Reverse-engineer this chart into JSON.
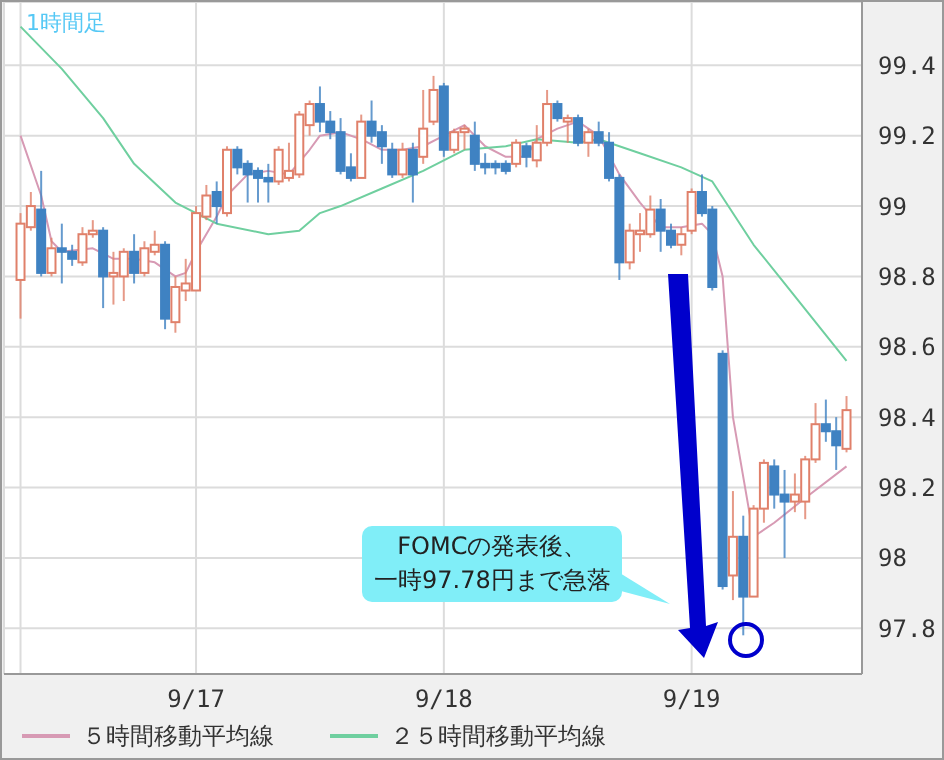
{
  "chart_data": {
    "type": "candlestick",
    "title": "1時間足",
    "x": [
      "--09-16T07:00",
      "--09-16T08:00",
      "--09-16T09:00",
      "--09-16T10:00",
      "--09-16T11:00",
      "--09-16T12:00",
      "--09-16T13:00",
      "--09-16T14:00",
      "--09-16T15:00",
      "--09-16T16:00",
      "--09-16T17:00",
      "--09-16T18:00",
      "--09-16T19:00",
      "--09-16T20:00",
      "--09-16T21:00",
      "--09-16T22:00",
      "--09-16T23:00",
      "--09-17T00:00",
      "--09-17T01:00",
      "--09-17T02:00",
      "--09-17T03:00",
      "--09-17T04:00",
      "--09-17T05:00",
      "--09-17T06:00",
      "--09-17T07:00",
      "--09-17T08:00",
      "--09-17T09:00",
      "--09-17T10:00",
      "--09-17T11:00",
      "--09-17T12:00",
      "--09-17T13:00",
      "--09-17T14:00",
      "--09-17T15:00",
      "--09-17T16:00",
      "--09-17T17:00",
      "--09-17T18:00",
      "--09-17T19:00",
      "--09-17T20:00",
      "--09-17T21:00",
      "--09-17T22:00",
      "--09-17T23:00",
      "--09-18T00:00",
      "--09-18T01:00",
      "--09-18T02:00",
      "--09-18T03:00",
      "--09-18T04:00",
      "--09-18T05:00",
      "--09-18T06:00",
      "--09-18T07:00",
      "--09-18T08:00",
      "--09-18T09:00",
      "--09-18T10:00",
      "--09-18T11:00",
      "--09-18T12:00",
      "--09-18T13:00",
      "--09-18T14:00",
      "--09-18T15:00",
      "--09-18T16:00",
      "--09-18T17:00",
      "--09-18T18:00",
      "--09-18T19:00",
      "--09-18T20:00",
      "--09-18T21:00",
      "--09-18T22:00",
      "--09-18T23:00",
      "--09-19T00:00",
      "--09-19T01:00",
      "--09-19T02:00",
      "--09-19T03:00",
      "--09-19T04:00",
      "--09-19T05:00",
      "--09-19T06:00",
      "--09-19T07:00",
      "--09-19T08:00",
      "--09-19T09:00",
      "--09-19T10:00",
      "--09-19T11:00",
      "--09-19T12:00",
      "--09-19T13:00",
      "--09-19T14:00",
      "--09-19T15:00"
    ],
    "ohlc": [
      [
        98.79,
        98.98,
        98.68,
        98.95
      ],
      [
        98.94,
        99.04,
        98.93,
        99.0
      ],
      [
        98.99,
        99.1,
        98.8,
        98.81
      ],
      [
        98.81,
        98.91,
        98.8,
        98.88
      ],
      [
        98.88,
        98.95,
        98.78,
        98.87
      ],
      [
        98.87,
        98.89,
        98.83,
        98.85
      ],
      [
        98.84,
        98.94,
        98.83,
        98.92
      ],
      [
        98.92,
        98.96,
        98.91,
        98.93
      ],
      [
        98.93,
        98.94,
        98.71,
        98.8
      ],
      [
        98.8,
        98.87,
        98.72,
        98.81
      ],
      [
        98.8,
        98.88,
        98.73,
        98.87
      ],
      [
        98.87,
        98.92,
        98.78,
        98.81
      ],
      [
        98.81,
        98.9,
        98.8,
        98.88
      ],
      [
        98.87,
        98.93,
        98.86,
        98.89
      ],
      [
        98.89,
        98.9,
        98.65,
        98.68
      ],
      [
        98.67,
        98.8,
        98.64,
        98.77
      ],
      [
        98.76,
        98.85,
        98.73,
        98.78
      ],
      [
        98.76,
        99.0,
        98.76,
        98.98
      ],
      [
        98.97,
        99.06,
        98.96,
        99.03
      ],
      [
        99.04,
        99.07,
        98.95,
        99.0
      ],
      [
        98.98,
        99.17,
        98.97,
        99.16
      ],
      [
        99.16,
        99.17,
        99.09,
        99.11
      ],
      [
        99.12,
        99.13,
        99.01,
        99.09
      ],
      [
        99.1,
        99.11,
        99.01,
        99.08
      ],
      [
        99.08,
        99.12,
        99.01,
        99.07
      ],
      [
        99.07,
        99.17,
        99.06,
        99.16
      ],
      [
        99.08,
        99.18,
        99.07,
        99.1
      ],
      [
        99.09,
        99.27,
        99.08,
        99.26
      ],
      [
        99.23,
        99.3,
        99.2,
        99.29
      ],
      [
        99.29,
        99.34,
        99.21,
        99.24
      ],
      [
        99.24,
        99.27,
        99.19,
        99.21
      ],
      [
        99.21,
        99.25,
        99.09,
        99.1
      ],
      [
        99.11,
        99.15,
        99.07,
        99.08
      ],
      [
        99.08,
        99.26,
        99.08,
        99.24
      ],
      [
        99.24,
        99.3,
        99.18,
        99.2
      ],
      [
        99.21,
        99.23,
        99.12,
        99.17
      ],
      [
        99.16,
        99.18,
        99.08,
        99.09
      ],
      [
        99.09,
        99.18,
        99.08,
        99.16
      ],
      [
        99.16,
        99.18,
        99.01,
        99.09
      ],
      [
        99.14,
        99.33,
        99.12,
        99.22
      ],
      [
        99.24,
        99.37,
        99.23,
        99.33
      ],
      [
        99.34,
        99.35,
        99.14,
        99.16
      ],
      [
        99.16,
        99.22,
        99.15,
        99.21
      ],
      [
        99.21,
        99.23,
        99.16,
        99.22
      ],
      [
        99.2,
        99.24,
        99.1,
        99.12
      ],
      [
        99.12,
        99.15,
        99.09,
        99.11
      ],
      [
        99.12,
        99.13,
        99.09,
        99.11
      ],
      [
        99.12,
        99.13,
        99.09,
        99.1
      ],
      [
        99.12,
        99.19,
        99.11,
        99.18
      ],
      [
        99.17,
        99.18,
        99.11,
        99.14
      ],
      [
        99.13,
        99.23,
        99.11,
        99.18
      ],
      [
        99.18,
        99.33,
        99.17,
        99.29
      ],
      [
        99.29,
        99.3,
        99.24,
        99.25
      ],
      [
        99.24,
        99.26,
        99.18,
        99.25
      ],
      [
        99.25,
        99.26,
        99.17,
        99.18
      ],
      [
        99.18,
        99.22,
        99.14,
        99.21
      ],
      [
        99.21,
        99.24,
        99.17,
        99.18
      ],
      [
        99.18,
        99.21,
        99.07,
        99.08
      ],
      [
        99.08,
        99.09,
        98.79,
        98.84
      ],
      [
        98.84,
        98.95,
        98.82,
        98.93
      ],
      [
        98.92,
        98.98,
        98.87,
        98.93
      ],
      [
        98.92,
        99.03,
        98.91,
        98.99
      ],
      [
        98.99,
        99.02,
        98.87,
        98.93
      ],
      [
        98.93,
        98.95,
        98.88,
        98.89
      ],
      [
        98.89,
        98.94,
        98.86,
        98.92
      ],
      [
        98.93,
        99.05,
        98.92,
        99.04
      ],
      [
        99.04,
        99.09,
        98.97,
        98.98
      ],
      [
        98.99,
        99.0,
        98.76,
        98.77
      ],
      [
        98.58,
        98.59,
        97.91,
        97.92
      ],
      [
        97.95,
        98.19,
        97.88,
        98.06
      ],
      [
        98.06,
        98.12,
        97.78,
        97.89
      ],
      [
        97.89,
        98.15,
        97.89,
        98.14
      ],
      [
        98.14,
        98.28,
        98.1,
        98.27
      ],
      [
        98.26,
        98.28,
        98.14,
        98.18
      ],
      [
        98.18,
        98.25,
        98.0,
        98.16
      ],
      [
        98.16,
        98.24,
        98.13,
        98.18
      ],
      [
        98.16,
        98.29,
        98.11,
        98.28
      ],
      [
        98.28,
        98.44,
        98.27,
        98.38
      ],
      [
        98.38,
        98.45,
        98.33,
        98.36
      ],
      [
        98.36,
        98.4,
        98.25,
        98.32
      ],
      [
        98.31,
        98.46,
        98.3,
        98.42
      ]
    ],
    "series": [
      {
        "type": "line",
        "name": "５時間移動平均線",
        "color": "#d79ab4",
        "x": [
          "--09-16T07:00",
          "--09-16T09:00",
          "--09-16T10:00",
          "--09-16T11:00",
          "--09-16T14:00",
          "--09-16T16:00",
          "--09-16T18:00",
          "--09-16T20:00",
          "--09-16T22:00",
          "--09-16T23:00",
          "--09-17T00:00",
          "--09-17T02:00",
          "--09-17T03:00",
          "--09-17T05:00",
          "--09-17T07:00",
          "--09-17T09:00",
          "--09-17T11:00",
          "--09-17T12:00",
          "--09-17T14:00",
          "--09-17T16:00",
          "--09-17T18:00",
          "--09-17T20:00",
          "--09-17T22:00",
          "--09-18T00:00",
          "--09-18T02:00",
          "--09-18T04:00",
          "--09-18T06:00",
          "--09-18T08:00",
          "--09-18T09:00",
          "--09-18T11:00",
          "--09-18T13:00",
          "--09-18T15:00",
          "--09-18T17:00",
          "--09-18T19:00",
          "--09-18T21:00",
          "--09-18T23:00",
          "--09-19T01:00",
          "--09-19T02:00",
          "--09-19T03:00",
          "--09-19T04:00",
          "--09-19T06:00",
          "--09-19T08:00",
          "--09-19T11:00",
          "--09-19T15:00"
        ],
        "values": [
          99.2,
          99.03,
          98.9,
          98.87,
          98.88,
          98.85,
          98.85,
          98.84,
          98.8,
          98.81,
          98.87,
          98.97,
          99.03,
          99.09,
          99.1,
          99.09,
          99.16,
          99.2,
          99.21,
          99.19,
          99.16,
          99.16,
          99.17,
          99.2,
          99.23,
          99.17,
          99.14,
          99.14,
          99.19,
          99.22,
          99.24,
          99.2,
          99.09,
          99.01,
          98.94,
          98.94,
          98.95,
          98.92,
          98.8,
          98.4,
          98.06,
          98.1,
          98.17,
          98.26
        ]
      },
      {
        "type": "line",
        "name": "２５時間移動平均線",
        "color": "#6fcf9f",
        "x": [
          "--09-16T07:00",
          "--09-16T11:00",
          "--09-16T15:00",
          "--09-16T18:00",
          "--09-16T22:00",
          "--09-17T02:00",
          "--09-17T07:00",
          "--09-17T10:00",
          "--09-17T12:00",
          "--09-17T14:00",
          "--09-17T18:00",
          "--09-17T22:00",
          "--09-18T02:00",
          "--09-18T06:00",
          "--09-18T09:00",
          "--09-18T13:00",
          "--09-18T15:00",
          "--09-18T19:00",
          "--09-18T23:00",
          "--09-19T02:00",
          "--09-19T06:00",
          "--09-19T09:00",
          "--09-19T15:00"
        ],
        "values": [
          99.51,
          99.39,
          99.25,
          99.12,
          99.01,
          98.95,
          98.92,
          98.93,
          98.98,
          99.0,
          99.05,
          99.1,
          99.16,
          99.17,
          99.19,
          99.18,
          99.19,
          99.15,
          99.11,
          99.07,
          98.89,
          98.78,
          98.56
        ]
      }
    ],
    "xlim": [
      "--09-16T05:24",
      "--09-19T16:30"
    ],
    "xticks": [
      {
        "value": "--09-16T07:00",
        "label": null
      },
      {
        "value": "--09-17",
        "label": "9/17"
      },
      {
        "value": "--09-18",
        "label": "9/18"
      },
      {
        "value": "--09-19",
        "label": "9/19"
      }
    ],
    "ylim": [
      97.67,
      99.58
    ],
    "yticks": [
      97.8,
      98,
      98.2,
      98.4,
      98.6,
      98.8,
      99,
      99.2,
      99.4
    ],
    "grid": true,
    "legend": "bottom",
    "annotations": [
      "FOMCの発表後、",
      "一時97.78円まで急落"
    ]
  }
}
